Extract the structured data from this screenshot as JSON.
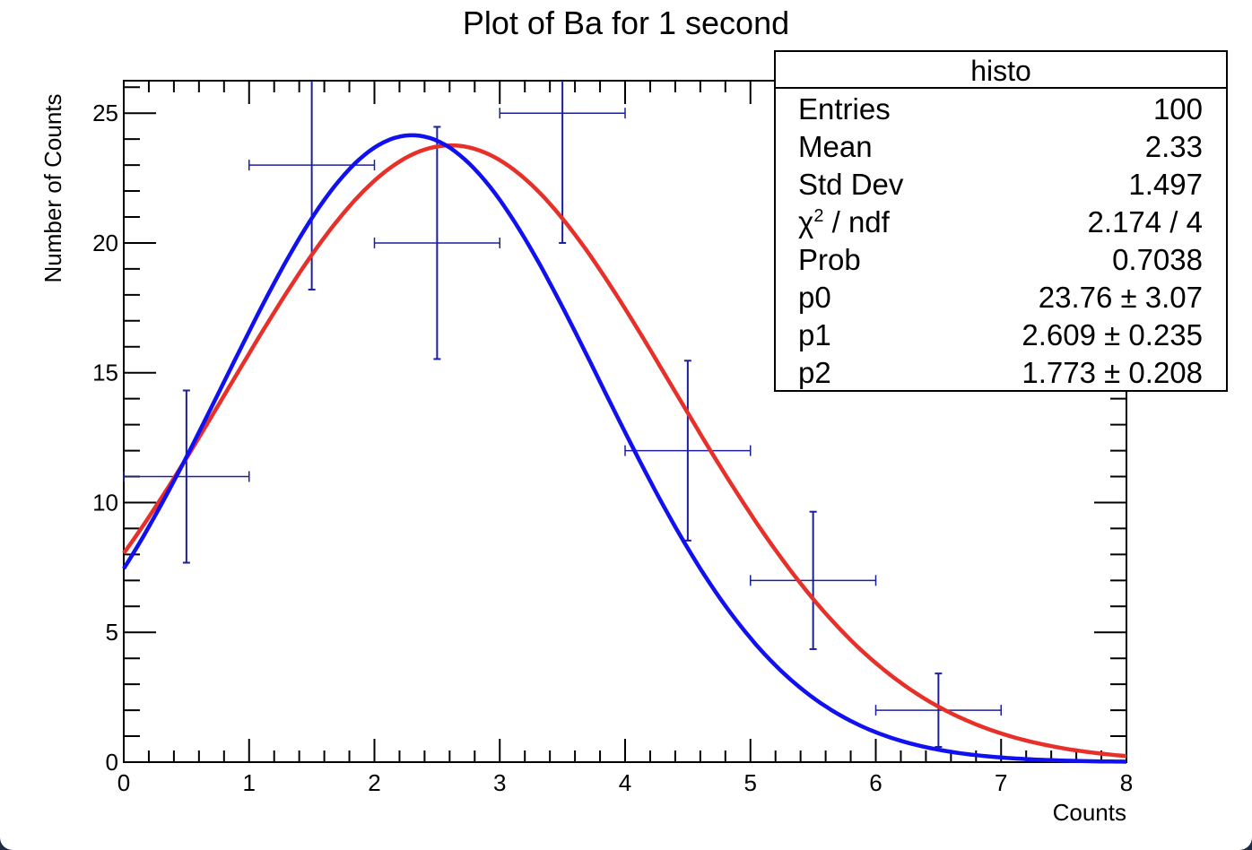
{
  "chart_data": {
    "type": "bar",
    "title": "Plot of Ba for 1 second",
    "xlabel": "Counts",
    "ylabel": "Number of Counts",
    "xlim": [
      0,
      8
    ],
    "ylim": [
      0,
      26.25
    ],
    "x_ticks": [
      "0",
      "1",
      "2",
      "3",
      "4",
      "5",
      "6",
      "7",
      "8"
    ],
    "y_ticks": [
      "0",
      "5",
      "10",
      "15",
      "20",
      "25"
    ],
    "y_tick_values": [
      0,
      5,
      10,
      15,
      20,
      25
    ],
    "grid": false,
    "histogram": {
      "name": "histo",
      "color": "#1c1f9c",
      "bin_edges": [
        0,
        1,
        2,
        3,
        4,
        5,
        6,
        7
      ],
      "bin_width": 1,
      "values": [
        11,
        23,
        20,
        25,
        12,
        7,
        2
      ],
      "errors": [
        3.317,
        4.796,
        4.472,
        5.0,
        3.464,
        2.646,
        1.414
      ]
    },
    "fits": [
      {
        "color": "#e8302a",
        "amplitude": 23.76,
        "mean": 2.609,
        "sigma": 1.773
      },
      {
        "color": "#1010f0",
        "amplitude": 24.15,
        "mean": 2.3,
        "sigma": 1.5
      }
    ],
    "stats_box": {
      "title": "histo",
      "rows": [
        {
          "label": "Entries",
          "value": "100"
        },
        {
          "label": "Mean",
          "value": "2.33"
        },
        {
          "label": "Std Dev",
          "value": "1.497"
        },
        {
          "label": "χ",
          "sup": "2",
          "label_rest": " / ndf",
          "value": "2.174 / 4"
        },
        {
          "label": "Prob",
          "value": "0.7038"
        },
        {
          "label": "p0",
          "value": "23.76 ± 3.07"
        },
        {
          "label": "p1",
          "value": "2.609 ± 0.235"
        },
        {
          "label": "p2",
          "value": "1.773 ± 0.208"
        }
      ]
    }
  }
}
